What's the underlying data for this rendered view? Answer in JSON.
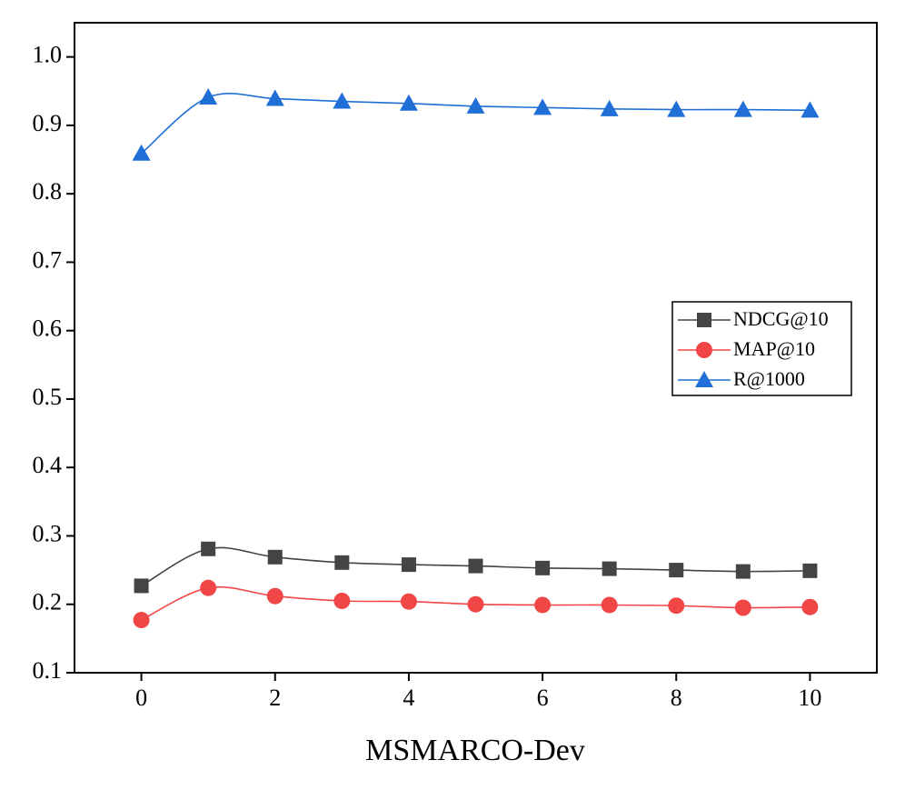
{
  "chart_data": {
    "type": "line",
    "x_label": "MSMARCO-Dev",
    "x": [
      0,
      1,
      2,
      3,
      4,
      5,
      6,
      7,
      8,
      9,
      10
    ],
    "xlim": [
      -1,
      11
    ],
    "xticks": [
      0,
      2,
      4,
      6,
      8,
      10
    ],
    "ylim": [
      0.1,
      1.05
    ],
    "yticks": [
      {
        "value": 0.1,
        "label": "0.1"
      },
      {
        "value": 0.2,
        "label": "0.2"
      },
      {
        "value": 0.3,
        "label": "0.3"
      },
      {
        "value": 0.4,
        "label": "0.4"
      },
      {
        "value": 0.5,
        "label": "0.5"
      },
      {
        "value": 0.6,
        "label": "0.6"
      },
      {
        "value": 0.7,
        "label": "0.7"
      },
      {
        "value": 0.8,
        "label": "0.8"
      },
      {
        "value": 0.9,
        "label": "0.9"
      },
      {
        "value": 1.0,
        "label": "1.0"
      }
    ],
    "legend": "right",
    "series": [
      {
        "name": "NDCG@10",
        "color": "#444444",
        "marker": "square",
        "values": [
          0.227,
          0.281,
          0.269,
          0.261,
          0.258,
          0.256,
          0.253,
          0.252,
          0.25,
          0.248,
          0.249
        ]
      },
      {
        "name": "MAP@10",
        "color": "#f04646",
        "marker": "circle",
        "values": [
          0.177,
          0.224,
          0.212,
          0.205,
          0.204,
          0.2,
          0.199,
          0.199,
          0.198,
          0.195,
          0.196
        ]
      },
      {
        "name": "R@1000",
        "color": "#1f6fd6",
        "marker": "triangle",
        "values": [
          0.859,
          0.941,
          0.939,
          0.935,
          0.932,
          0.928,
          0.926,
          0.924,
          0.923,
          0.923,
          0.922
        ]
      }
    ]
  }
}
